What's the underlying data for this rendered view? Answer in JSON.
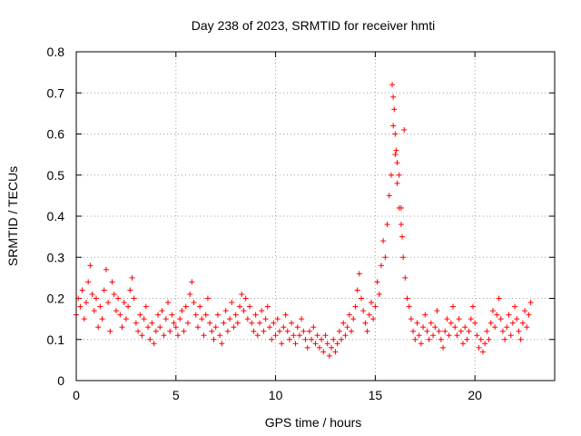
{
  "chart_data": {
    "type": "scatter",
    "title": "Day 238 of 2023, SRMTID for receiver hmti",
    "xlabel": "GPS time / hours",
    "ylabel": "SRMTID / TECUs",
    "xlim": [
      0,
      24
    ],
    "ylim": [
      0,
      0.8
    ],
    "xticks": [
      0,
      5,
      10,
      15,
      20
    ],
    "xtick_labels": [
      "0",
      "5",
      "10",
      "15",
      "20"
    ],
    "yticks": [
      0,
      0.1,
      0.2,
      0.3,
      0.4,
      0.5,
      0.6,
      0.7,
      0.8
    ],
    "ytick_labels": [
      "0",
      "0.1",
      "0.2",
      "0.3",
      "0.4",
      "0.5",
      "0.6",
      "0.7",
      "0.8"
    ],
    "grid": true,
    "marker": "plus",
    "marker_color": "#ff0000",
    "series": [
      {
        "name": "SRMTID",
        "x": [
          0.0,
          0.1,
          0.2,
          0.3,
          0.4,
          0.5,
          0.6,
          0.7,
          0.8,
          0.9,
          1.0,
          1.1,
          1.2,
          1.3,
          1.4,
          1.5,
          1.6,
          1.7,
          1.8,
          1.9,
          2.0,
          2.1,
          2.2,
          2.3,
          2.4,
          2.5,
          2.6,
          2.7,
          2.8,
          2.9,
          3.0,
          3.1,
          3.2,
          3.3,
          3.4,
          3.5,
          3.6,
          3.7,
          3.8,
          3.9,
          4.0,
          4.1,
          4.2,
          4.3,
          4.4,
          4.5,
          4.6,
          4.7,
          4.8,
          4.9,
          5.0,
          5.1,
          5.2,
          5.3,
          5.4,
          5.5,
          5.6,
          5.7,
          5.8,
          5.9,
          6.0,
          6.1,
          6.2,
          6.3,
          6.4,
          6.5,
          6.6,
          6.7,
          6.8,
          6.9,
          7.0,
          7.1,
          7.2,
          7.3,
          7.4,
          7.5,
          7.6,
          7.7,
          7.8,
          7.9,
          8.0,
          8.1,
          8.2,
          8.3,
          8.4,
          8.5,
          8.6,
          8.7,
          8.8,
          8.9,
          9.0,
          9.1,
          9.2,
          9.3,
          9.4,
          9.5,
          9.6,
          9.7,
          9.8,
          9.9,
          10.0,
          10.1,
          10.2,
          10.3,
          10.4,
          10.5,
          10.6,
          10.7,
          10.8,
          10.9,
          11.0,
          11.1,
          11.2,
          11.3,
          11.4,
          11.5,
          11.6,
          11.7,
          11.8,
          11.9,
          12.0,
          12.1,
          12.2,
          12.3,
          12.4,
          12.5,
          12.6,
          12.7,
          12.8,
          12.9,
          13.0,
          13.1,
          13.2,
          13.3,
          13.4,
          13.5,
          13.6,
          13.7,
          13.8,
          13.9,
          14.0,
          14.1,
          14.2,
          14.3,
          14.4,
          14.5,
          14.6,
          14.7,
          14.8,
          14.9,
          15.0,
          15.1,
          15.2,
          15.3,
          15.4,
          15.5,
          15.6,
          15.7,
          15.8,
          15.9,
          16.0,
          16.1,
          16.2,
          16.3,
          16.4,
          16.5,
          16.6,
          16.7,
          16.8,
          16.9,
          17.0,
          17.1,
          17.2,
          17.3,
          17.4,
          17.5,
          17.6,
          17.7,
          17.8,
          17.9,
          18.0,
          18.1,
          18.2,
          18.3,
          18.4,
          18.5,
          18.6,
          18.7,
          18.8,
          18.9,
          19.0,
          19.1,
          19.2,
          19.3,
          19.4,
          19.5,
          19.6,
          19.7,
          19.8,
          19.9,
          20.0,
          20.1,
          20.2,
          20.3,
          20.4,
          20.5,
          20.6,
          20.7,
          20.8,
          20.9,
          21.0,
          21.1,
          21.2,
          21.3,
          21.4,
          21.5,
          21.6,
          21.7,
          21.8,
          21.9,
          22.0,
          22.1,
          22.2,
          22.3,
          22.4,
          22.5,
          22.6,
          22.7,
          22.8,
          15.85,
          15.9,
          15.95,
          16.0,
          16.05,
          16.1,
          16.2,
          16.3,
          16.35,
          16.45
        ],
        "y": [
          0.16,
          0.2,
          0.18,
          0.22,
          0.15,
          0.19,
          0.24,
          0.28,
          0.21,
          0.17,
          0.2,
          0.13,
          0.18,
          0.15,
          0.22,
          0.27,
          0.19,
          0.12,
          0.24,
          0.21,
          0.17,
          0.2,
          0.16,
          0.13,
          0.19,
          0.15,
          0.18,
          0.22,
          0.25,
          0.2,
          0.14,
          0.12,
          0.16,
          0.11,
          0.15,
          0.18,
          0.13,
          0.1,
          0.14,
          0.09,
          0.12,
          0.16,
          0.13,
          0.17,
          0.11,
          0.15,
          0.19,
          0.12,
          0.16,
          0.14,
          0.13,
          0.11,
          0.15,
          0.17,
          0.12,
          0.18,
          0.14,
          0.21,
          0.24,
          0.19,
          0.16,
          0.13,
          0.18,
          0.15,
          0.11,
          0.16,
          0.2,
          0.14,
          0.12,
          0.1,
          0.13,
          0.16,
          0.11,
          0.09,
          0.14,
          0.17,
          0.12,
          0.15,
          0.19,
          0.13,
          0.16,
          0.14,
          0.18,
          0.21,
          0.17,
          0.2,
          0.15,
          0.18,
          0.14,
          0.12,
          0.16,
          0.11,
          0.14,
          0.17,
          0.12,
          0.15,
          0.18,
          0.13,
          0.1,
          0.14,
          0.11,
          0.15,
          0.12,
          0.09,
          0.13,
          0.16,
          0.12,
          0.1,
          0.14,
          0.11,
          0.09,
          0.13,
          0.11,
          0.15,
          0.12,
          0.1,
          0.08,
          0.12,
          0.1,
          0.13,
          0.09,
          0.11,
          0.08,
          0.1,
          0.07,
          0.11,
          0.09,
          0.06,
          0.08,
          0.1,
          0.07,
          0.09,
          0.12,
          0.1,
          0.14,
          0.11,
          0.13,
          0.16,
          0.12,
          0.15,
          0.18,
          0.22,
          0.26,
          0.2,
          0.17,
          0.14,
          0.12,
          0.16,
          0.19,
          0.15,
          0.18,
          0.24,
          0.21,
          0.28,
          0.34,
          0.3,
          0.38,
          0.45,
          0.5,
          0.62,
          0.55,
          0.48,
          0.42,
          0.38,
          0.3,
          0.25,
          0.2,
          0.18,
          0.15,
          0.12,
          0.1,
          0.14,
          0.11,
          0.09,
          0.13,
          0.16,
          0.12,
          0.1,
          0.14,
          0.11,
          0.13,
          0.17,
          0.12,
          0.1,
          0.08,
          0.12,
          0.15,
          0.11,
          0.14,
          0.18,
          0.13,
          0.11,
          0.15,
          0.12,
          0.09,
          0.13,
          0.1,
          0.12,
          0.15,
          0.18,
          0.14,
          0.11,
          0.08,
          0.1,
          0.07,
          0.09,
          0.12,
          0.1,
          0.14,
          0.17,
          0.13,
          0.16,
          0.2,
          0.15,
          0.12,
          0.1,
          0.13,
          0.16,
          0.11,
          0.14,
          0.18,
          0.15,
          0.12,
          0.1,
          0.14,
          0.17,
          0.13,
          0.16,
          0.19,
          0.72,
          0.69,
          0.66,
          0.6,
          0.56,
          0.53,
          0.5,
          0.42,
          0.35,
          0.61
        ]
      }
    ]
  }
}
